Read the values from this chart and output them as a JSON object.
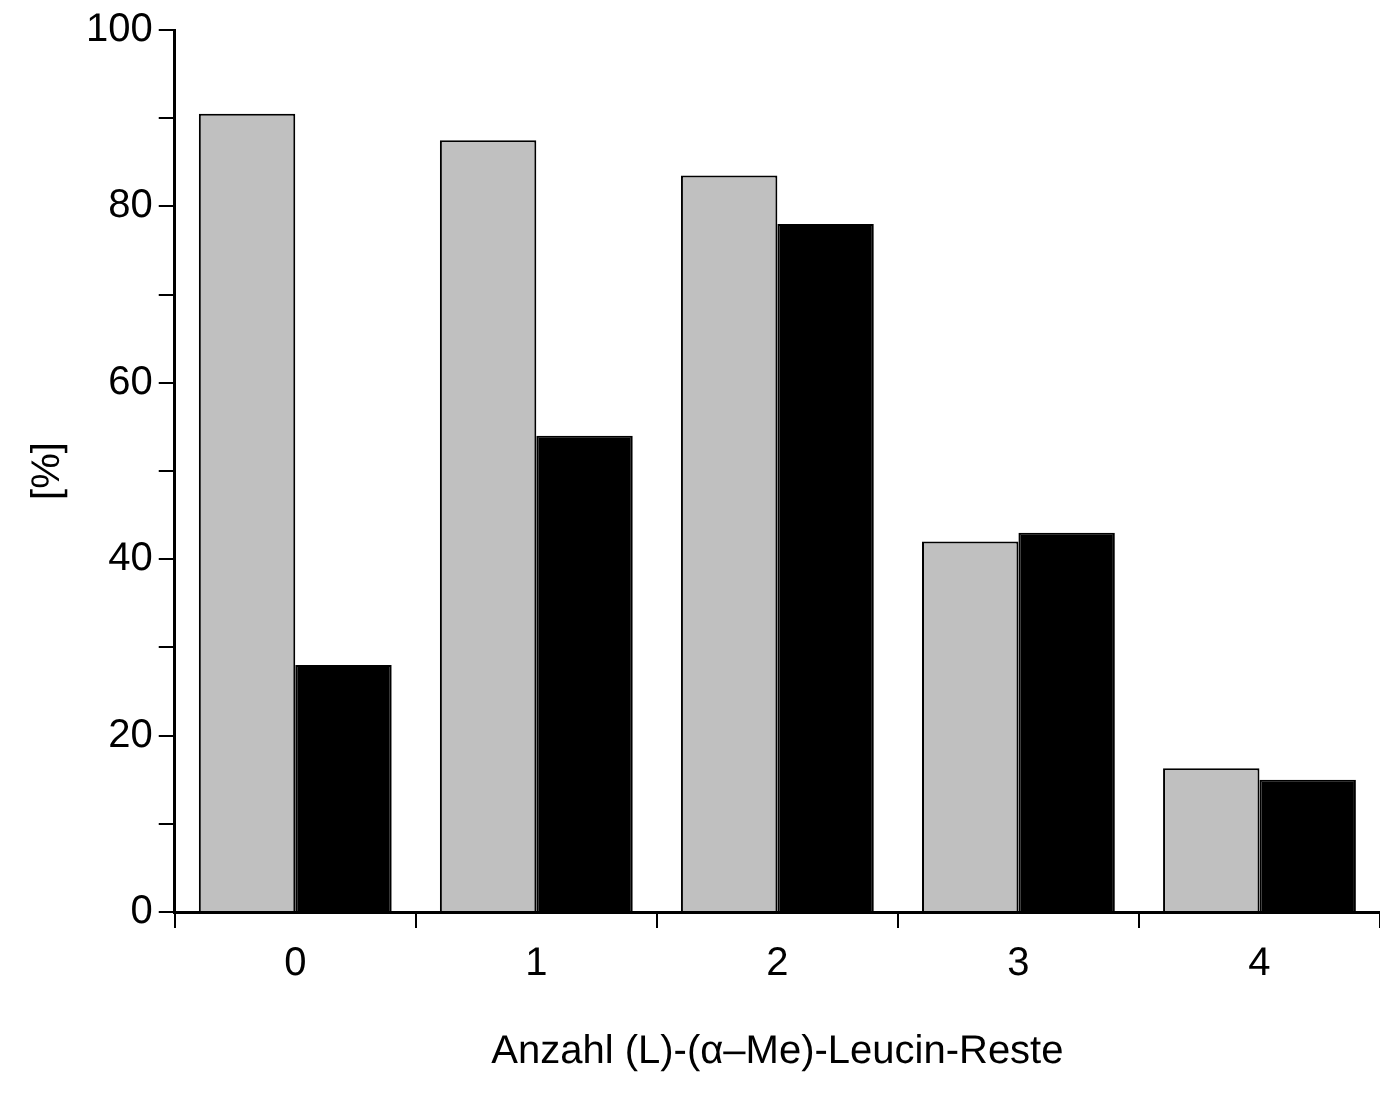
{
  "chart_data": {
    "type": "bar",
    "xlabel": "Anzahl (L)-(α–Me)-Leucin-Reste",
    "ylabel": "[%]",
    "categories": [
      "0",
      "1",
      "2",
      "3",
      "4"
    ],
    "series": [
      {
        "color": "#c0c0c0",
        "values": [
          90.5,
          87.5,
          83.5,
          42,
          16.3
        ]
      },
      {
        "color": "#000000",
        "values": [
          28,
          54,
          78,
          43,
          15
        ]
      }
    ],
    "ylim": [
      0,
      100
    ],
    "yticks": [
      0,
      {
        "value": 10,
        "label": null
      },
      20,
      {
        "value": 30,
        "label": null
      },
      40,
      {
        "value": 50,
        "label": null
      },
      60,
      {
        "value": 70,
        "label": null
      },
      80,
      {
        "value": 90,
        "label": null
      },
      100
    ],
    "grid": false,
    "legend": false
  }
}
